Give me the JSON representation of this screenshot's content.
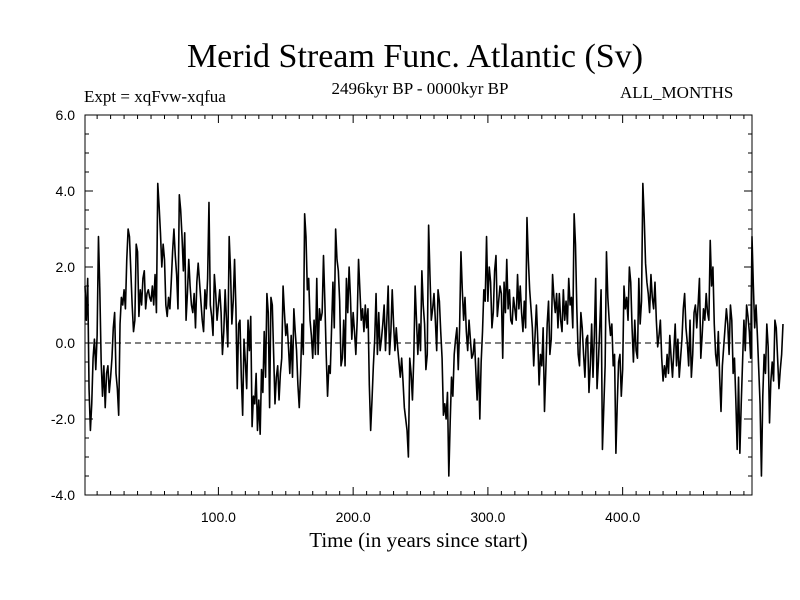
{
  "chart_data": {
    "type": "line",
    "title": "Merid Stream Func. Atlantic (Sv)",
    "subtitle_left": "Expt = xqFvw-xqfua",
    "subtitle_center": "2496kyr BP - 0000kyr BP",
    "subtitle_right": "ALL_MONTHS",
    "xlabel": "Time (in years since start)",
    "ylabel": "",
    "xlim": [
      1,
      496
    ],
    "ylim": [
      -4.0,
      6.0
    ],
    "xticks": [
      100,
      200,
      300,
      400
    ],
    "xtick_labels": [
      "100.0",
      "200.0",
      "300.0",
      "400.0"
    ],
    "yticks": [
      -4,
      -2,
      0,
      2,
      4,
      6
    ],
    "ytick_labels": [
      "-4.0",
      "-2.0",
      "0.0",
      "2.0",
      "4.0",
      "6.0"
    ],
    "reference_line": 0,
    "series": [
      {
        "name": "Merid Stream Func. Atlantic",
        "color": "#000000",
        "x_start": 1,
        "x_step": 1,
        "values": [
          1.5,
          0.6,
          1.7,
          -1.2,
          -2.3,
          -1.6,
          -0.4,
          0.1,
          -0.7,
          0.2,
          2.8,
          1.4,
          -0.5,
          -1.4,
          -0.6,
          -1.7,
          -0.8,
          -0.6,
          -1.3,
          -0.9,
          -0.4,
          0.4,
          0.8,
          -0.8,
          -1.2,
          -1.9,
          0.5,
          1.2,
          1.0,
          1.4,
          0.9,
          2.2,
          3.0,
          2.8,
          1.9,
          1.0,
          0.3,
          0.6,
          2.6,
          2.4,
          0.7,
          1.4,
          1.0,
          1.7,
          1.9,
          0.9,
          1.3,
          1.4,
          1.2,
          1.1,
          1.5,
          1.0,
          1.8,
          0.8,
          4.2,
          3.6,
          2.9,
          2.0,
          2.6,
          2.2,
          1.0,
          0.7,
          1.2,
          0.9,
          1.6,
          2.4,
          3.0,
          2.3,
          1.8,
          0.9,
          3.9,
          3.5,
          2.8,
          1.9,
          2.9,
          0.6,
          1.3,
          2.2,
          1.5,
          1.0,
          0.8,
          1.3,
          0.4,
          1.6,
          2.1,
          1.6,
          1.1,
          0.6,
          0.3,
          1.4,
          0.9,
          1.7,
          3.7,
          1.0,
          0.7,
          0.2,
          1.8,
          1.3,
          0.6,
          1.0,
          1.4,
          0.8,
          -0.3,
          0.3,
          1.4,
          0.6,
          -0.1,
          2.8,
          1.9,
          0.5,
          1.1,
          2.2,
          0.9,
          -1.2,
          0.5,
          0.6,
          -0.9,
          -1.9,
          0.1,
          -0.5,
          -1.2,
          0.6,
          -0.2,
          0.7,
          -2.2,
          -1.4,
          -1.6,
          -0.8,
          -2.3,
          -1.5,
          -2.4,
          -0.7,
          -1.3,
          0.3,
          -0.9,
          1.3,
          0.8,
          -1.7,
          1.2,
          1.0,
          -0.3,
          -1.6,
          -0.9,
          -0.6,
          -1.5,
          -0.8,
          -0.4,
          1.5,
          0.8,
          0.2,
          0.5,
          -0.1,
          -0.8,
          0.2,
          -0.9,
          0.9,
          0.3,
          -0.2,
          -1.1,
          -1.7,
          -0.8,
          0.5,
          -0.3,
          3.4,
          2.8,
          1.4,
          1.7,
          0.6,
          0.2,
          -0.4,
          0.6,
          -0.3,
          1.7,
          -0.3,
          0.9,
          0.6,
          0.8,
          2.3,
          1.1,
          -0.3,
          -1.4,
          -0.6,
          -0.8,
          0.4,
          1.6,
          0.4,
          3.0,
          2.2,
          1.9,
          1.1,
          -0.6,
          -0.4,
          0.6,
          -0.6,
          1.7,
          0.8,
          2.0,
          1.2,
          0.1,
          0.8,
          0.3,
          -0.3,
          0.6,
          2.2,
          1.4,
          0.6,
          0.9,
          0.3,
          1.0,
          0.4,
          0.9,
          -1.1,
          -2.3,
          -1.5,
          -0.6,
          0.1,
          1.3,
          -0.3,
          0.8,
          -0.2,
          0.1,
          0.5,
          1.0,
          -0.2,
          0.6,
          1.5,
          -0.3,
          0.3,
          1.4,
          0.5,
          -0.2,
          0.4,
          -0.1,
          -0.5,
          -0.9,
          -0.4,
          -1.0,
          -1.7,
          -2.0,
          -2.3,
          -3.0,
          -0.4,
          -0.8,
          -1.5,
          -0.4,
          1.5,
          0.6,
          -0.3,
          0.5,
          -0.2,
          1.9,
          1.0,
          0.5,
          -0.7,
          -0.3,
          3.1,
          1.8,
          0.6,
          0.9,
          1.3,
          0.6,
          -0.2,
          1.4,
          1.1,
          0.3,
          -0.4,
          -1.9,
          -1.6,
          -2.0,
          -1.3,
          -3.5,
          -2.1,
          -0.9,
          -1.4,
          -0.3,
          0.1,
          0.4,
          -0.7,
          0.4,
          2.4,
          1.4,
          0.6,
          1.2,
          0.3,
          -0.2,
          0.6,
          0.1,
          -0.4,
          -0.3,
          0.1,
          -0.7,
          -1.5,
          -0.4,
          -2.0,
          -0.5,
          0.3,
          1.4,
          1.1,
          2.8,
          1.1,
          2.0,
          1.6,
          0.4,
          0.8,
          1.9,
          2.3,
          0.7,
          1.1,
          1.5,
          1.3,
          -0.4,
          1.6,
          0.8,
          2.2,
          0.9,
          1.4,
          0.6,
          0.5,
          1.2,
          0.9,
          0.6,
          1.8,
          0.9,
          1.5,
          0.8,
          0.3,
          1.1,
          0.4,
          3.3,
          2.2,
          1.4,
          0.9,
          0.4,
          -0.6,
          0.2,
          1.0,
          0.1,
          -1.1,
          -0.3,
          -0.6,
          0.4,
          -1.8,
          -0.7,
          0.5,
          1.1,
          -0.3,
          0.1,
          1.8,
          1.2,
          0.8,
          1.3,
          0.4,
          1.3,
          0.6,
          0.3,
          1.4,
          0.6,
          1.1,
          0.5,
          1.7,
          1.0,
          1.2,
          0.4,
          3.4,
          2.6,
          0.9,
          -0.3,
          -0.6,
          0.8,
          0.4,
          -0.3,
          -0.9,
          0.1,
          0.2,
          -1.3,
          -0.6,
          0.5,
          -0.9,
          0.2,
          1.7,
          -1.2,
          -0.5,
          0.4,
          1.4,
          -2.8,
          -1.7,
          -0.6,
          2.4,
          1.2,
          0.6,
          0.2,
          0.5,
          -0.6,
          -0.3,
          -2.9,
          -1.6,
          -0.5,
          -0.3,
          -1.4,
          -0.7,
          1.5,
          0.9,
          1.2,
          0.6,
          2.0,
          1.6,
          0.4,
          -0.5,
          0.6,
          -0.2,
          -0.4,
          1.7,
          0.5,
          1.1,
          4.2,
          3.3,
          2.1,
          1.6,
          1.3,
          0.8,
          1.8,
          1.2,
          0.9,
          1.6,
          0.6,
          -0.1,
          0.2,
          0.6,
          -0.4,
          -1.0,
          -0.6,
          -0.9,
          -0.3,
          -0.8,
          0.2,
          -0.4,
          -0.9,
          -0.2,
          0.5,
          -0.6,
          0.1,
          -0.9,
          -0.4,
          0.1,
          0.9,
          1.3,
          0.4,
          0.0,
          -0.6,
          0.6,
          -0.9,
          -0.3,
          0.8,
          1.0,
          0.4,
          1.0,
          1.7,
          -0.4,
          0.2,
          0.9,
          0.6,
          1.3,
          0.8,
          0.6,
          2.7,
          1.5,
          2.0,
          0.5,
          -0.3,
          -0.6,
          0.3,
          -0.9,
          -1.8,
          -0.6,
          -0.1,
          0.4,
          0.9,
          0.5,
          -0.3,
          1.0,
          0.6,
          -0.8,
          -0.4,
          -1.5,
          -2.8,
          -0.9,
          -2.9,
          -1.6,
          -0.5,
          0.6,
          -0.2,
          1.0,
          0.7,
          0.3,
          -0.4,
          2.8,
          1.5,
          0.4,
          1.0,
          0.2,
          -0.7,
          -1.6,
          -3.5,
          -1.4,
          -0.3,
          -0.8,
          0.5,
          -0.1,
          -2.1,
          -1.0,
          -0.5,
          -1.0,
          0.6,
          0.4,
          -0.4,
          -1.2,
          -0.7,
          -0.3,
          0.5
        ]
      }
    ]
  }
}
